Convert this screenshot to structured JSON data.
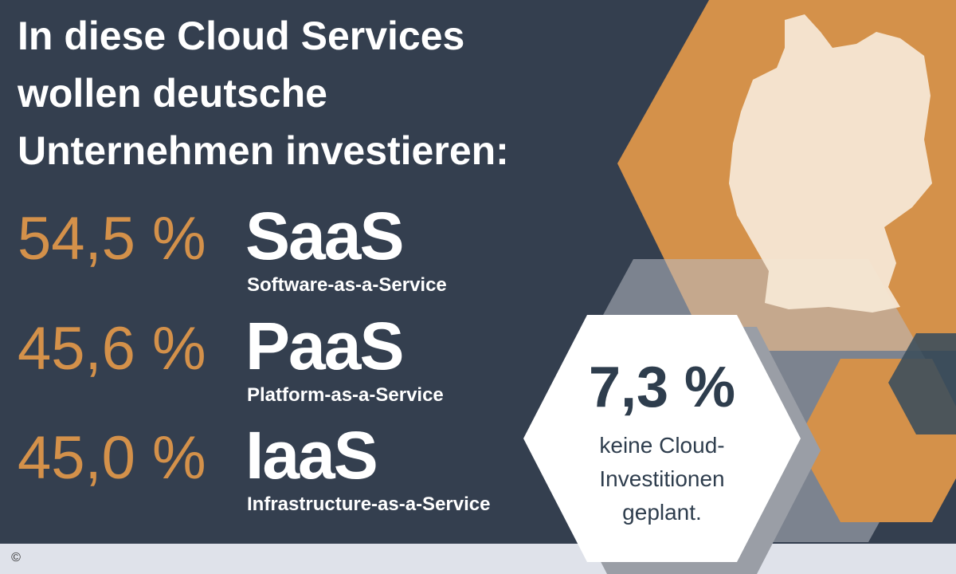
{
  "header": {
    "title_lines": [
      "In diese Cloud Services",
      "wollen deutsche",
      "Unternehmen investieren:"
    ]
  },
  "items": [
    {
      "percent": "54,5 %",
      "name": "SaaS",
      "description": "Software-as-a-Service"
    },
    {
      "percent": "45,6 %",
      "name": "PaaS",
      "description": "Platform-as-a-Service"
    },
    {
      "percent": "45,0 %",
      "name": "IaaS",
      "description": "Infrastructure-as-a-Service"
    }
  ],
  "callout": {
    "value": "7,3 %",
    "text_lines": [
      "keine Cloud-",
      "Investitionen",
      "geplant."
    ]
  },
  "footer": {
    "copyright": "©"
  }
}
